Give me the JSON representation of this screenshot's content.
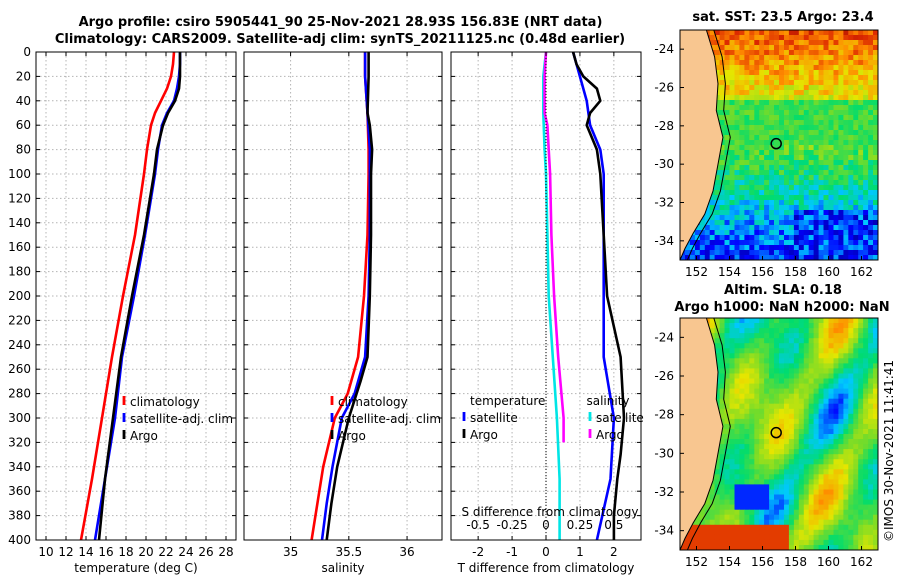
{
  "title": {
    "line1": "Argo profile: csiro 5905441_90 25-Nov-2021 28.93S 156.83E (NRT data)",
    "line2": "Climatology: CARS2009. Satellite-adj clim: synTS_20211125.nc (0.48d earlier)"
  },
  "map_titles": {
    "sst": "sat. SST: 23.5 Argo: 23.4",
    "sla_line1": "Altim. SLA: 0.18",
    "sla_line2": "Argo h1000: NaN h2000: NaN"
  },
  "watermark": "©IMOS 30-Nov-2021 11:41:41",
  "colors": {
    "climatology": "#ff0000",
    "satellite": "#0000ff",
    "argo": "#000000",
    "satellite_salinity": "#00e5e5",
    "argo_salinity": "#ff00ff",
    "land": "#f8c690",
    "grid": "#b4b4b4"
  },
  "chart_data": [
    {
      "type": "line",
      "panel": "temperature",
      "xlabel": "temperature (deg C)",
      "xlim": [
        9,
        29
      ],
      "ylim": [
        0,
        400
      ],
      "xticks": [
        10,
        12,
        14,
        16,
        18,
        20,
        22,
        24,
        26,
        28
      ],
      "yticks": [
        0,
        20,
        40,
        60,
        80,
        100,
        120,
        140,
        160,
        180,
        200,
        220,
        240,
        260,
        280,
        300,
        320,
        340,
        360,
        380,
        400
      ],
      "legend": [
        "climatology",
        "satellite-adj. clim",
        "Argo"
      ],
      "series": [
        {
          "name": "climatology",
          "color": "#ff0000",
          "depth": [
            0,
            10,
            20,
            30,
            40,
            50,
            60,
            80,
            100,
            150,
            200,
            250,
            300,
            350,
            400
          ],
          "values": [
            22.8,
            22.7,
            22.5,
            22.1,
            21.5,
            20.9,
            20.5,
            20.1,
            19.8,
            18.9,
            17.7,
            16.6,
            15.6,
            14.6,
            13.5
          ]
        },
        {
          "name": "satellite-adj. clim",
          "color": "#0000ff",
          "depth": [
            0,
            10,
            20,
            30,
            40,
            50,
            60,
            80,
            100,
            150,
            200,
            250,
            300,
            350,
            400
          ],
          "values": [
            23.4,
            23.4,
            23.3,
            23.1,
            22.8,
            22.1,
            21.6,
            21.2,
            20.9,
            19.9,
            18.8,
            17.6,
            16.9,
            15.9,
            14.9
          ]
        },
        {
          "name": "Argo",
          "color": "#000000",
          "depth": [
            0,
            10,
            20,
            30,
            40,
            50,
            60,
            80,
            100,
            150,
            200,
            250,
            300,
            350,
            400
          ],
          "values": [
            23.4,
            23.4,
            23.4,
            23.3,
            22.9,
            22.2,
            21.7,
            21.1,
            20.8,
            19.8,
            18.6,
            17.5,
            16.7,
            15.9,
            15.3
          ]
        }
      ]
    },
    {
      "type": "line",
      "panel": "salinity",
      "xlabel": "salinity",
      "xlim": [
        34.6,
        36.3
      ],
      "ylim": [
        0,
        400
      ],
      "xticks": [
        35,
        35.5,
        36
      ],
      "legend": [
        "climatology",
        "satellite-adj. clim",
        "Argo"
      ],
      "series": [
        {
          "name": "climatology",
          "color": "#ff0000",
          "depth": [
            0,
            20,
            50,
            80,
            100,
            150,
            200,
            250,
            280,
            300,
            340,
            370,
            400
          ],
          "values": [
            35.64,
            35.64,
            35.66,
            35.67,
            35.67,
            35.66,
            35.63,
            35.58,
            35.49,
            35.38,
            35.28,
            35.23,
            35.18
          ]
        },
        {
          "name": "satellite-adj. clim",
          "color": "#0000ff",
          "depth": [
            0,
            20,
            50,
            80,
            100,
            150,
            200,
            250,
            280,
            300,
            340,
            370,
            400
          ],
          "values": [
            35.64,
            35.64,
            35.66,
            35.68,
            35.68,
            35.68,
            35.67,
            35.64,
            35.55,
            35.44,
            35.36,
            35.31,
            35.27
          ]
        },
        {
          "name": "Argo",
          "color": "#000000",
          "depth": [
            0,
            20,
            50,
            60,
            80,
            100,
            150,
            200,
            250,
            270,
            300,
            340,
            370,
            400
          ],
          "values": [
            35.67,
            35.67,
            35.66,
            35.68,
            35.7,
            35.69,
            35.69,
            35.68,
            35.66,
            35.6,
            35.5,
            35.4,
            35.35,
            35.31
          ]
        }
      ]
    },
    {
      "type": "line",
      "panel": "differences",
      "xlabel": "T difference from climatology",
      "xlabel_top": "S difference from climatology",
      "xlim": [
        -2.8,
        2.8
      ],
      "ylim": [
        0,
        400
      ],
      "xticks": [
        -2,
        -1,
        0,
        1,
        2
      ],
      "sticks_labels": [
        "-0.5",
        "-0.25",
        "0",
        "0.25",
        "0.5"
      ],
      "sticks_values": [
        -0.5,
        -0.25,
        0,
        0.25,
        0.5
      ],
      "legend_left_title": "temperature",
      "legend_right_title": "salinity",
      "legend_left": [
        "satellite",
        "Argo"
      ],
      "legend_right": [
        "satellite",
        "Argo"
      ],
      "series": [
        {
          "name": "temperature satellite",
          "color": "#0000ff",
          "units": "T",
          "depth": [
            0,
            10,
            20,
            40,
            60,
            80,
            100,
            150,
            200,
            250,
            300,
            350,
            400
          ],
          "values": [
            0.8,
            0.9,
            1.0,
            1.2,
            1.3,
            1.6,
            1.7,
            1.7,
            1.7,
            1.7,
            2.0,
            1.9,
            1.5
          ]
        },
        {
          "name": "temperature Argo",
          "color": "#000000",
          "units": "T",
          "depth": [
            0,
            10,
            20,
            30,
            40,
            50,
            60,
            80,
            100,
            150,
            200,
            250,
            300,
            330,
            350,
            380,
            400
          ],
          "values": [
            0.8,
            0.9,
            1.1,
            1.5,
            1.6,
            1.3,
            1.2,
            1.5,
            1.6,
            1.7,
            1.8,
            2.2,
            2.3,
            2.2,
            2.1,
            2.0,
            2.0
          ]
        },
        {
          "name": "salinity satellite",
          "color": "#00e5e5",
          "units": "S",
          "depth": [
            0,
            20,
            50,
            80,
            100,
            150,
            200,
            250,
            300,
            350,
            400
          ],
          "values": [
            0.0,
            -0.02,
            -0.02,
            -0.01,
            0.0,
            0.01,
            0.02,
            0.05,
            0.08,
            0.1,
            0.1
          ]
        },
        {
          "name": "salinity Argo",
          "color": "#ff00ff",
          "units": "S",
          "depth": [
            0,
            20,
            50,
            60,
            80,
            100,
            150,
            200,
            250,
            300,
            320
          ],
          "values": [
            0.0,
            -0.01,
            -0.01,
            0.01,
            0.02,
            0.03,
            0.04,
            0.06,
            0.09,
            0.13,
            0.13
          ]
        }
      ]
    },
    {
      "type": "heatmap",
      "panel": "sst_map",
      "title": "sat. SST: 23.5 Argo: 23.4",
      "xlim": [
        151,
        163
      ],
      "ylim": [
        -35,
        -23
      ],
      "xticks": [
        152,
        154,
        156,
        158,
        160,
        162
      ],
      "yticks": [
        -24,
        -26,
        -28,
        -30,
        -32,
        -34
      ],
      "profile_lon": 156.83,
      "profile_lat": -28.93
    },
    {
      "type": "heatmap",
      "panel": "sla_map",
      "title": "Altim. SLA: 0.18",
      "xlim": [
        151,
        163
      ],
      "ylim": [
        -35,
        -23
      ],
      "xticks": [
        152,
        154,
        156,
        158,
        160,
        162
      ],
      "yticks": [
        -24,
        -26,
        -28,
        -30,
        -32,
        -34
      ],
      "profile_lon": 156.83,
      "profile_lat": -28.93
    }
  ]
}
